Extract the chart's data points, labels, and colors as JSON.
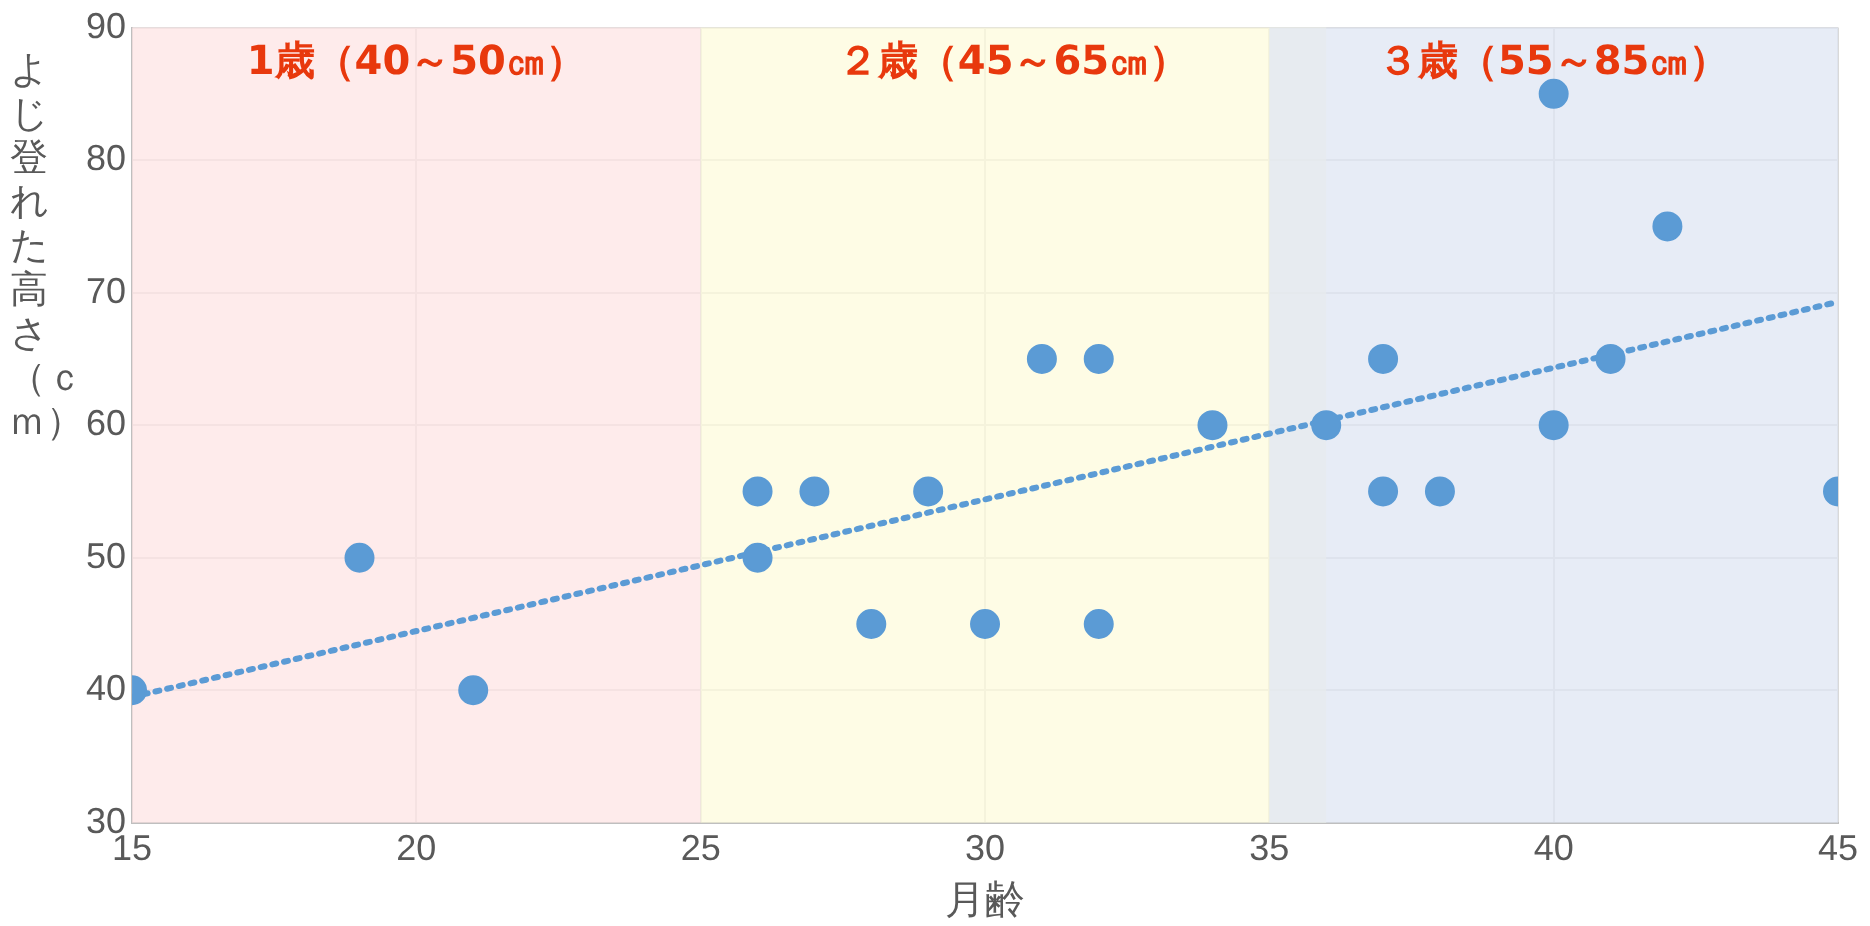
{
  "chart_data": {
    "type": "scatter",
    "xlabel": "月齢",
    "ylabel": "よじ登れた高さ（ｃｍ）",
    "xlim": [
      15,
      45
    ],
    "xticks": [
      15,
      20,
      25,
      30,
      35,
      40,
      45
    ],
    "ylim": [
      30,
      90
    ],
    "yticks": [
      30,
      40,
      50,
      60,
      70,
      80,
      90
    ],
    "grid": true,
    "legend": false,
    "marker": "circle",
    "series": [
      {
        "type": "scatter",
        "color": "#5b9bd5",
        "x": [
          15,
          19,
          21,
          26,
          26,
          27,
          28,
          29,
          30,
          31,
          32,
          32,
          34,
          36,
          37,
          37,
          38,
          40,
          40,
          41,
          42,
          45
        ],
        "values": [
          40,
          50,
          40,
          55,
          50,
          55,
          45,
          55,
          45,
          65,
          65,
          45,
          60,
          60,
          65,
          55,
          55,
          85,
          60,
          65,
          75,
          55
        ]
      },
      {
        "type": "line",
        "color": "#5b9bd5",
        "line_style": "dotted",
        "marker": "none",
        "x": [
          15,
          45
        ],
        "values": [
          39.5,
          69.3
        ]
      }
    ],
    "bands": [
      {
        "axis": "x",
        "from": 15,
        "to": 25,
        "label": "1歳（40～50㎝）",
        "color": "#fde4e4"
      },
      {
        "axis": "x",
        "from": 25,
        "to": 36,
        "label": "２歳（45～65㎝）",
        "color": "#fdfbdc"
      },
      {
        "axis": "x",
        "from": 35,
        "to": 45,
        "label": "３歳（55～85㎝）",
        "color": "#dfe6f3"
      }
    ]
  }
}
